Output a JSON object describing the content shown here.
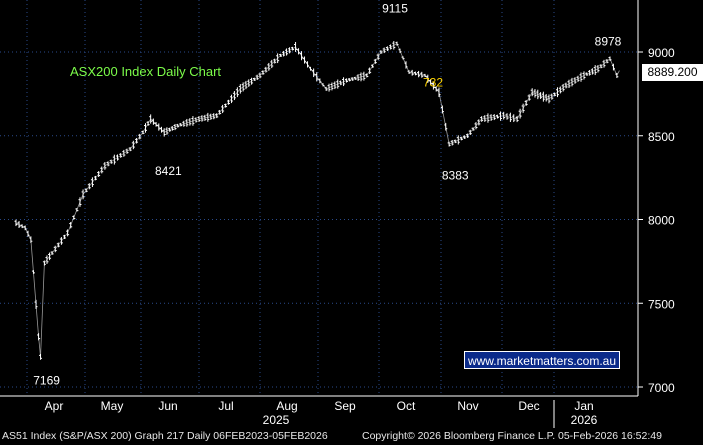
{
  "chart_data": {
    "type": "line",
    "title": "ASX200 Index Daily Chart",
    "ylim": [
      6980,
      9230
    ],
    "yticks": [
      7000,
      7500,
      8000,
      8500,
      9000
    ],
    "x_months": [
      "Apr",
      "May",
      "Jun",
      "Jul",
      "Aug",
      "Sep",
      "Oct",
      "Nov",
      "Dec",
      "Jan"
    ],
    "x_years": [
      "2025",
      "2026"
    ],
    "series": [
      {
        "name": "",
        "x": [
          "Mar 26",
          "Mar 31",
          "Apr 3",
          "Apr 7",
          "Apr 8",
          "Apr 10",
          "Apr 14",
          "Apr 22",
          "Apr 30",
          "May 12",
          "May 26",
          "Jun 2",
          "Jun 6",
          "Jun 13",
          "Jun 20",
          "Jul 1",
          "Jul 10",
          "Jul 22",
          "Aug 1",
          "Aug 12",
          "Aug 20",
          "Aug 28",
          "Sep 5",
          "Sep 15",
          "Sep 25",
          "Oct 2",
          "Oct 10",
          "Oct 16",
          "Oct 24",
          "Oct 31",
          "Nov 5",
          "Nov 14",
          "Nov 21",
          "Dec 2",
          "Dec 10",
          "Dec 19",
          "Dec 29",
          "Jan 7",
          "Jan 16",
          "Jan 23",
          "Jan 29",
          "Feb 2",
          "Feb 5"
        ],
        "values": [
          7980,
          7950,
          7880,
          7300,
          7180,
          7740,
          7800,
          7920,
          8150,
          8320,
          8420,
          8520,
          8600,
          8520,
          8560,
          8600,
          8620,
          8780,
          8860,
          8980,
          9030,
          8900,
          8780,
          8830,
          8860,
          9000,
          9050,
          8880,
          8860,
          8760,
          8450,
          8500,
          8600,
          8620,
          8600,
          8760,
          8720,
          8800,
          8860,
          8900,
          8960,
          8860,
          8889.2
        ]
      }
    ],
    "annotations": [
      {
        "text": "9115",
        "value": 9115,
        "date": "Oct 10",
        "color": "#ffffff"
      },
      {
        "text": "8978",
        "value": 8978,
        "date": "Jan 29",
        "color": "#ffffff"
      },
      {
        "text": "8421",
        "value": 8421,
        "date": "Jun 11",
        "color": "#ffffff"
      },
      {
        "text": "8383",
        "value": 8383,
        "date": "Nov 7",
        "color": "#ffffff"
      },
      {
        "text": "7169",
        "value": 7169,
        "date": "Apr 7",
        "color": "#ffffff"
      },
      {
        "text": "732",
        "value": 732,
        "date": "Oct 24",
        "color": "#ffd400"
      }
    ],
    "last_price": "8889.200",
    "grid": true,
    "colors": {
      "background": "#000000",
      "line": "#ffffff",
      "grid": "#2a4a8a",
      "title": "#7cfc4a"
    }
  },
  "watermark": "www.marketmatters.com.au",
  "footer": {
    "left": "AS51 Index (S&P/ASX 200) Graph 217 Daily 06FEB2023-05FEB2026",
    "mid": "Copyright© 2026 Bloomberg Finance L.P.",
    "right": "05-Feb-2026 16:52:49"
  }
}
